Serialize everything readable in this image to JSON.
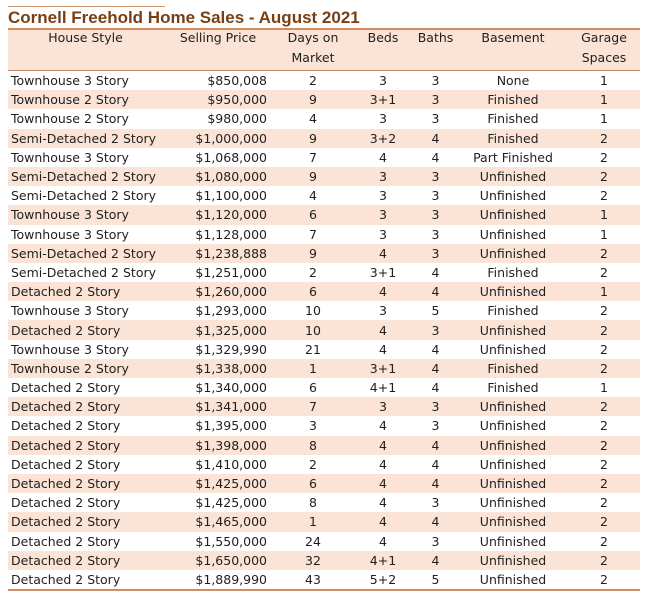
{
  "title": "Cornell Freehold Home Sales - August 2021",
  "headers": {
    "style": [
      "House Style",
      ""
    ],
    "price": [
      "Selling Price",
      ""
    ],
    "days": [
      "Days on",
      "Market"
    ],
    "beds": [
      "Beds",
      ""
    ],
    "baths": [
      "Baths",
      ""
    ],
    "basement": [
      "Basement",
      ""
    ],
    "garage": [
      "Garage",
      "Spaces"
    ]
  },
  "rows": [
    [
      "Townhouse 3 Story",
      "$850,008",
      "2",
      "3",
      "3",
      "None",
      "1"
    ],
    [
      "Townhouse 2 Story",
      "$950,000",
      "9",
      "3+1",
      "3",
      "Finished",
      "1"
    ],
    [
      "Townhouse 2 Story",
      "$980,000",
      "4",
      "3",
      "3",
      "Finished",
      "1"
    ],
    [
      "Semi-Detached 2 Story",
      "$1,000,000",
      "9",
      "3+2",
      "4",
      "Finished",
      "2"
    ],
    [
      "Townhouse 3 Story",
      "$1,068,000",
      "7",
      "4",
      "4",
      "Part Finished",
      "2"
    ],
    [
      "Semi-Detached 2 Story",
      "$1,080,000",
      "9",
      "3",
      "3",
      "Unfinished",
      "2"
    ],
    [
      "Semi-Detached 2 Story",
      "$1,100,000",
      "4",
      "3",
      "3",
      "Unfinished",
      "2"
    ],
    [
      "Townhouse 3 Story",
      "$1,120,000",
      "6",
      "3",
      "3",
      "Unfinished",
      "1"
    ],
    [
      "Townhouse 3 Story",
      "$1,128,000",
      "7",
      "3",
      "3",
      "Unfinished",
      "1"
    ],
    [
      "Semi-Detached 2 Story",
      "$1,238,888",
      "9",
      "4",
      "3",
      "Unfinished",
      "2"
    ],
    [
      "Semi-Detached 2 Story",
      "$1,251,000",
      "2",
      "3+1",
      "4",
      "Finished",
      "2"
    ],
    [
      "Detached 2 Story",
      "$1,260,000",
      "6",
      "4",
      "4",
      "Unfinished",
      "1"
    ],
    [
      "Townhouse 3 Story",
      "$1,293,000",
      "10",
      "3",
      "5",
      "Finished",
      "2"
    ],
    [
      "Detached 2 Story",
      "$1,325,000",
      "10",
      "4",
      "3",
      "Unfinished",
      "2"
    ],
    [
      "Townhouse 3 Story",
      "$1,329,990",
      "21",
      "4",
      "4",
      "Unfinished",
      "2"
    ],
    [
      "Townhouse 2 Story",
      "$1,338,000",
      "1",
      "3+1",
      "4",
      "Finished",
      "2"
    ],
    [
      "Detached 2 Story",
      "$1,340,000",
      "6",
      "4+1",
      "4",
      "Finished",
      "1"
    ],
    [
      "Detached 2 Story",
      "$1,341,000",
      "7",
      "3",
      "3",
      "Unfinished",
      "2"
    ],
    [
      "Detached 2 Story",
      "$1,395,000",
      "3",
      "4",
      "3",
      "Unfinished",
      "2"
    ],
    [
      "Detached 2 Story",
      "$1,398,000",
      "8",
      "4",
      "4",
      "Unfinished",
      "2"
    ],
    [
      "Detached 2 Story",
      "$1,410,000",
      "2",
      "4",
      "4",
      "Unfinished",
      "2"
    ],
    [
      "Detached 2 Story",
      "$1,425,000",
      "6",
      "4",
      "4",
      "Unfinished",
      "2"
    ],
    [
      "Detached 2 Story",
      "$1,425,000",
      "8",
      "4",
      "3",
      "Unfinished",
      "2"
    ],
    [
      "Detached 2 Story",
      "$1,465,000",
      "1",
      "4",
      "4",
      "Unfinished",
      "2"
    ],
    [
      "Detached 2 Story",
      "$1,550,000",
      "24",
      "4",
      "3",
      "Unfinished",
      "2"
    ],
    [
      "Detached 2 Story",
      "$1,650,000",
      "32",
      "4+1",
      "4",
      "Unfinished",
      "2"
    ],
    [
      "Detached 2 Story",
      "$1,889,990",
      "43",
      "5+2",
      "5",
      "Unfinished",
      "2"
    ]
  ],
  "colors": {
    "title": "#7a3e14",
    "band": "#fbe4d6",
    "rule": "#d38c60"
  }
}
